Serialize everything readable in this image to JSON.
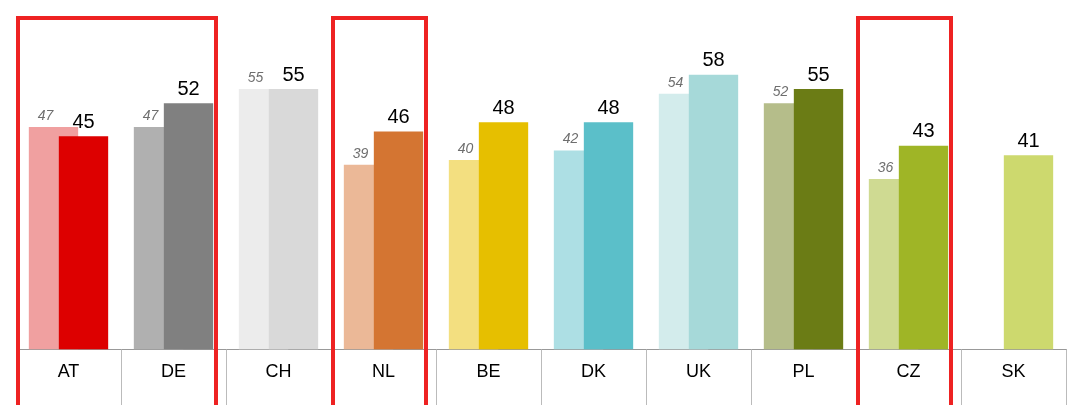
{
  "chart_data": {
    "type": "bar",
    "categories": [
      "AT",
      "DE",
      "CH",
      "NL",
      "BE",
      "DK",
      "UK",
      "PL",
      "CZ",
      "SK"
    ],
    "series": [
      {
        "colors": [
          "#f0a0a0",
          "#b0b0b0",
          "#ececec",
          "#ebb897",
          "#f3df80",
          "#addfe4",
          "#d3ecec",
          "#b5bd8a",
          "#cfda92",
          "#e6ecb6"
        ],
        "values": [
          47,
          47,
          55,
          39,
          40,
          42,
          54,
          52,
          36,
          null
        ]
      },
      {
        "colors": [
          "#dd0000",
          "#808080",
          "#d9d9d9",
          "#d47532",
          "#e6bf00",
          "#5bbfc9",
          "#a6d9d9",
          "#6b7c15",
          "#9fb526",
          "#cdd96e"
        ],
        "values": [
          45,
          52,
          55,
          46,
          48,
          48,
          58,
          55,
          43,
          41
        ]
      }
    ],
    "relative": false,
    "data_labels": true,
    "grid": false,
    "legend": false
  }
}
